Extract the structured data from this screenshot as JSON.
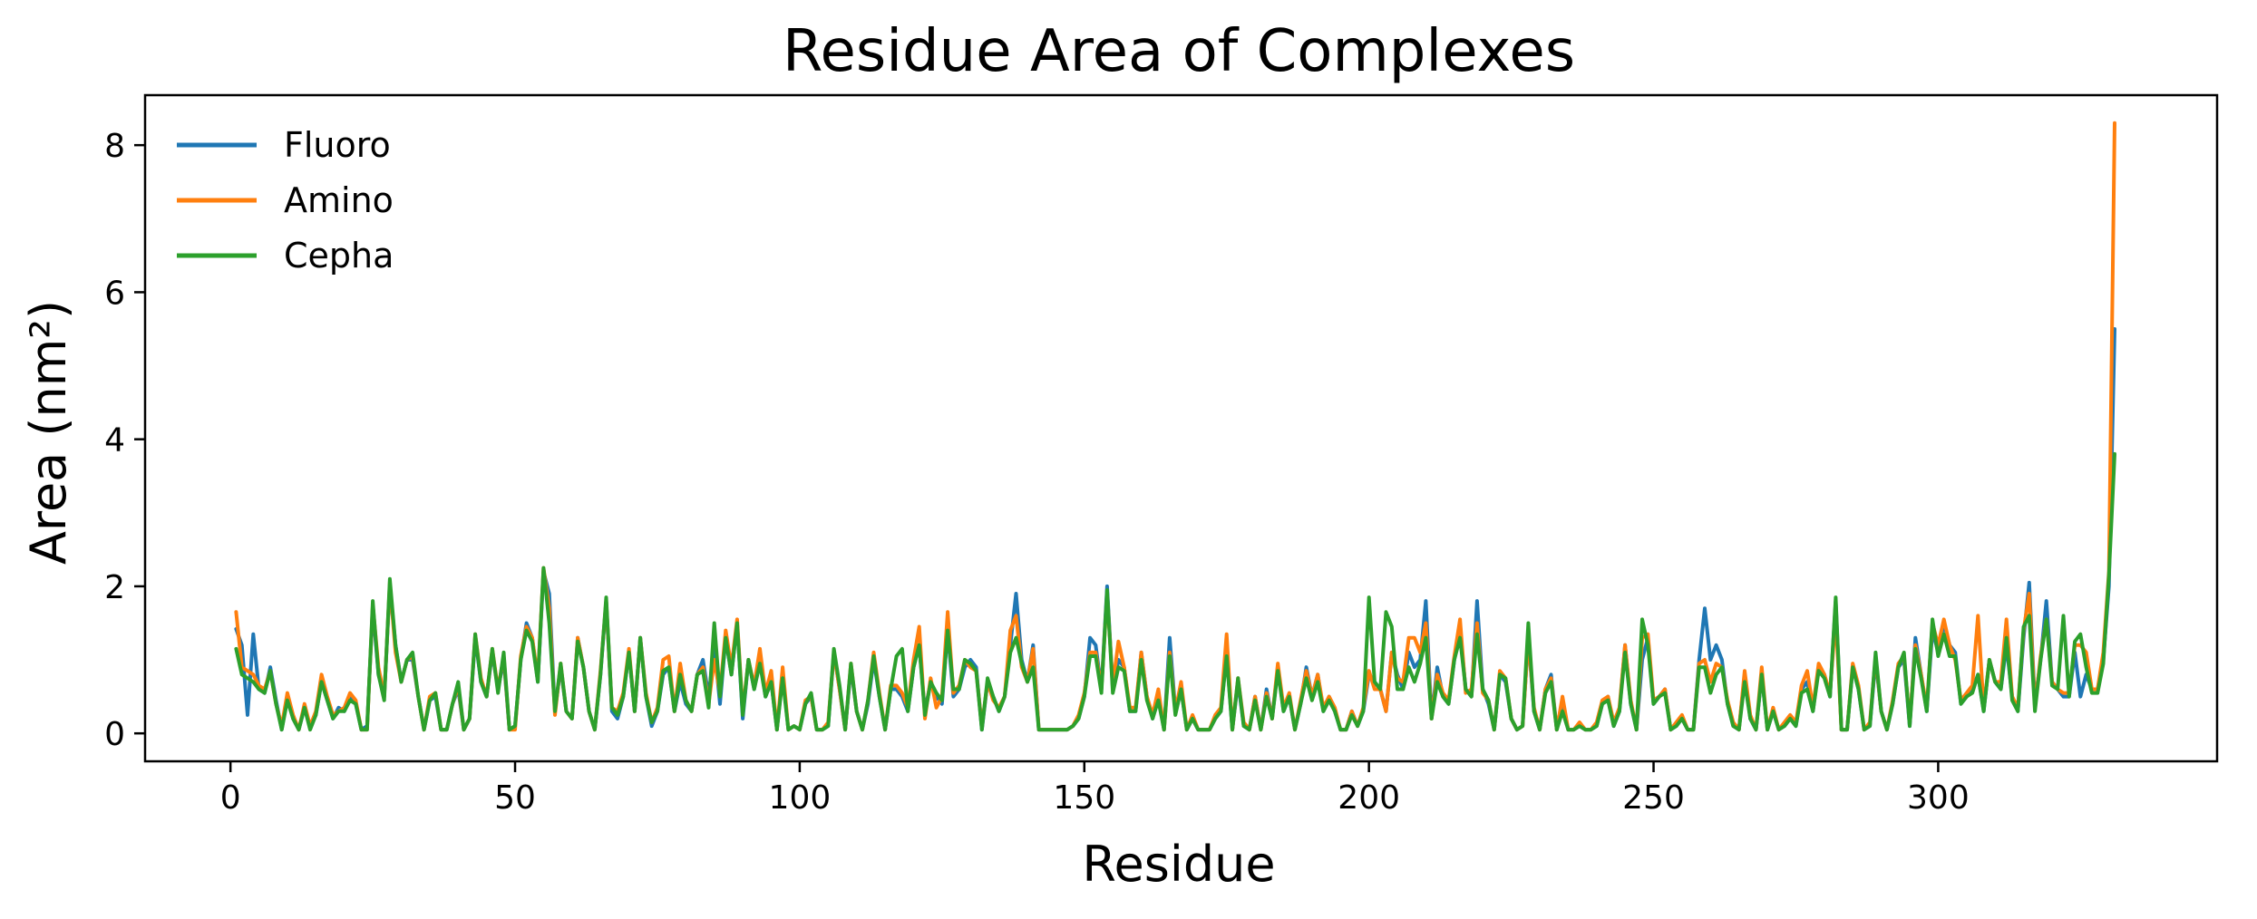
{
  "chart_data": {
    "type": "line",
    "title": "Residue Area of Complexes",
    "xlabel": "Residue",
    "ylabel": "Area (nm²)",
    "xlim": [
      -15,
      349
    ],
    "ylim": [
      -0.38,
      8.68
    ],
    "xticks": [
      0,
      50,
      100,
      150,
      200,
      250,
      300
    ],
    "yticks": [
      0,
      2,
      4,
      6,
      8
    ],
    "grid": false,
    "legend": "top-left",
    "x_start": 1,
    "series": [
      {
        "name": "Fluoro",
        "color": "#1f77b4",
        "values": [
          1.42,
          1.2,
          0.25,
          1.35,
          0.6,
          0.55,
          0.9,
          0.45,
          0.05,
          0.5,
          0.2,
          0.05,
          0.35,
          0.1,
          0.25,
          0.7,
          0.45,
          0.2,
          0.35,
          0.3,
          0.5,
          0.4,
          0.05,
          0.1,
          1.7,
          0.8,
          0.5,
          2.0,
          1.2,
          0.7,
          1.0,
          1.0,
          0.5,
          0.05,
          0.45,
          0.5,
          0.05,
          0.05,
          0.4,
          0.6,
          0.05,
          0.2,
          1.3,
          0.7,
          0.5,
          1.1,
          0.6,
          1.0,
          0.05,
          0.1,
          1.0,
          1.5,
          1.3,
          0.7,
          2.2,
          1.9,
          0.3,
          0.9,
          0.3,
          0.2,
          1.3,
          0.9,
          0.3,
          0.05,
          0.8,
          1.8,
          0.3,
          0.2,
          0.5,
          1.1,
          0.3,
          1.3,
          0.5,
          0.1,
          0.3,
          0.8,
          0.9,
          0.3,
          0.7,
          0.4,
          0.3,
          0.8,
          1.0,
          0.5,
          1.2,
          0.4,
          1.3,
          0.8,
          1.5,
          0.2,
          1.0,
          0.6,
          1.0,
          0.5,
          0.7,
          0.05,
          0.8,
          0.05,
          0.1,
          0.05,
          0.4,
          0.5,
          0.05,
          0.05,
          0.1,
          1.1,
          0.6,
          0.05,
          0.9,
          0.3,
          0.05,
          0.4,
          1.0,
          0.5,
          0.05,
          0.6,
          0.6,
          0.5,
          0.3,
          0.9,
          1.2,
          0.3,
          0.7,
          0.5,
          0.4,
          1.4,
          0.5,
          0.6,
          0.9,
          1.0,
          0.9,
          0.05,
          0.7,
          0.5,
          0.3,
          0.5,
          1.2,
          1.9,
          1.0,
          0.7,
          1.2,
          0.05,
          0.05,
          0.05,
          0.05,
          0.05,
          0.05,
          0.1,
          0.2,
          0.5,
          1.3,
          1.2,
          0.6,
          2.0,
          0.6,
          1.0,
          0.9,
          0.3,
          0.3,
          1.1,
          0.5,
          0.2,
          0.5,
          0.05,
          1.3,
          0.3,
          0.6,
          0.05,
          0.2,
          0.05,
          0.05,
          0.05,
          0.2,
          0.3,
          1.1,
          0.05,
          0.7,
          0.1,
          0.05,
          0.5,
          0.05,
          0.6,
          0.2,
          0.9,
          0.3,
          0.5,
          0.05,
          0.4,
          0.9,
          0.5,
          0.8,
          0.3,
          0.5,
          0.3,
          0.05,
          0.05,
          0.3,
          0.1,
          0.3,
          0.8,
          0.7,
          0.6,
          0.3,
          1.1,
          0.8,
          0.6,
          1.1,
          0.9,
          1.0,
          1.8,
          0.2,
          0.9,
          0.5,
          0.4,
          1.0,
          1.4,
          0.6,
          0.5,
          1.8,
          0.6,
          0.4,
          0.05,
          0.8,
          0.7,
          0.2,
          0.05,
          0.1,
          1.3,
          0.3,
          0.05,
          0.6,
          0.8,
          0.05,
          0.4,
          0.05,
          0.05,
          0.1,
          0.05,
          0.05,
          0.1,
          0.4,
          0.5,
          0.1,
          0.3,
          1.2,
          0.4,
          0.05,
          1.0,
          1.3,
          0.4,
          0.5,
          0.6,
          0.05,
          0.1,
          0.2,
          0.05,
          0.05,
          1.0,
          1.7,
          1.0,
          1.2,
          1.0,
          0.4,
          0.1,
          0.05,
          0.8,
          0.2,
          0.05,
          0.8,
          0.05,
          0.3,
          0.05,
          0.1,
          0.2,
          0.1,
          0.6,
          0.7,
          0.3,
          0.9,
          0.8,
          0.5,
          1.8,
          0.05,
          0.05,
          0.9,
          0.6,
          0.05,
          0.1,
          1.0,
          0.3,
          0.05,
          0.4,
          0.9,
          1.0,
          0.1,
          1.3,
          0.8,
          0.3,
          1.4,
          1.1,
          1.5,
          1.2,
          1.1,
          0.4,
          0.5,
          0.6,
          0.8,
          0.3,
          1.0,
          0.7,
          0.6,
          1.2,
          0.5,
          0.3,
          1.3,
          2.05,
          0.4,
          1.0,
          1.8,
          0.7,
          0.6,
          0.5,
          0.5,
          1.1,
          0.5,
          0.8,
          0.6,
          0.6,
          1.0,
          2.0,
          5.5
        ]
      },
      {
        "name": "Amino",
        "color": "#ff7f0e",
        "values": [
          1.65,
          0.9,
          0.85,
          0.8,
          0.65,
          0.6,
          0.85,
          0.4,
          0.1,
          0.55,
          0.25,
          0.05,
          0.4,
          0.1,
          0.3,
          0.8,
          0.5,
          0.25,
          0.3,
          0.35,
          0.55,
          0.45,
          0.05,
          0.05,
          1.75,
          0.9,
          0.5,
          2.05,
          1.1,
          0.7,
          1.0,
          1.05,
          0.5,
          0.05,
          0.5,
          0.55,
          0.05,
          0.05,
          0.4,
          0.65,
          0.05,
          0.2,
          1.35,
          0.75,
          0.5,
          1.15,
          0.6,
          1.05,
          0.05,
          0.05,
          1.05,
          1.45,
          1.3,
          0.75,
          2.25,
          1.7,
          0.25,
          0.95,
          0.3,
          0.2,
          1.3,
          0.9,
          0.3,
          0.05,
          0.85,
          1.8,
          0.35,
          0.3,
          0.55,
          1.15,
          0.3,
          1.3,
          0.55,
          0.15,
          0.35,
          1.0,
          1.05,
          0.3,
          0.95,
          0.45,
          0.3,
          0.8,
          0.9,
          0.4,
          1.0,
          0.55,
          1.4,
          0.9,
          1.55,
          0.3,
          1.0,
          0.65,
          1.15,
          0.55,
          0.85,
          0.05,
          0.9,
          0.05,
          0.1,
          0.05,
          0.45,
          0.5,
          0.05,
          0.05,
          0.15,
          1.1,
          0.6,
          0.05,
          0.95,
          0.3,
          0.05,
          0.45,
          1.1,
          0.55,
          0.05,
          0.65,
          0.65,
          0.55,
          0.35,
          1.0,
          1.45,
          0.2,
          0.75,
          0.35,
          0.5,
          1.65,
          0.55,
          0.65,
          1.0,
          0.9,
          0.85,
          0.1,
          0.7,
          0.45,
          0.35,
          0.5,
          1.4,
          1.6,
          0.9,
          0.7,
          1.15,
          0.05,
          0.05,
          0.05,
          0.05,
          0.05,
          0.05,
          0.1,
          0.25,
          0.55,
          1.1,
          1.1,
          0.6,
          1.9,
          0.65,
          1.25,
          0.9,
          0.35,
          0.35,
          1.1,
          0.5,
          0.25,
          0.6,
          0.05,
          1.1,
          0.3,
          0.7,
          0.05,
          0.25,
          0.05,
          0.05,
          0.05,
          0.25,
          0.35,
          1.35,
          0.05,
          0.75,
          0.15,
          0.05,
          0.5,
          0.05,
          0.55,
          0.2,
          0.95,
          0.35,
          0.55,
          0.05,
          0.45,
          0.85,
          0.5,
          0.8,
          0.35,
          0.5,
          0.35,
          0.05,
          0.05,
          0.3,
          0.1,
          0.35,
          0.85,
          0.6,
          0.6,
          0.3,
          1.1,
          0.75,
          0.7,
          1.3,
          1.3,
          1.1,
          1.5,
          0.2,
          0.8,
          0.55,
          0.45,
          1.05,
          1.55,
          0.55,
          0.6,
          1.5,
          0.55,
          0.45,
          0.05,
          0.85,
          0.75,
          0.2,
          0.05,
          0.1,
          1.3,
          0.35,
          0.05,
          0.6,
          0.75,
          0.05,
          0.5,
          0.05,
          0.05,
          0.15,
          0.05,
          0.05,
          0.15,
          0.45,
          0.5,
          0.15,
          0.35,
          1.2,
          0.45,
          0.05,
          1.3,
          1.35,
          0.45,
          0.5,
          0.6,
          0.05,
          0.15,
          0.25,
          0.05,
          0.05,
          0.95,
          1.0,
          0.7,
          0.95,
          0.9,
          0.45,
          0.15,
          0.05,
          0.85,
          0.25,
          0.05,
          0.9,
          0.05,
          0.35,
          0.05,
          0.15,
          0.25,
          0.15,
          0.65,
          0.85,
          0.35,
          0.95,
          0.8,
          0.55,
          1.6,
          0.05,
          0.05,
          0.95,
          0.65,
          0.05,
          0.15,
          1.05,
          0.3,
          0.05,
          0.45,
          0.95,
          1.05,
          0.15,
          1.2,
          0.8,
          0.35,
          1.5,
          1.2,
          1.55,
          1.2,
          1.0,
          0.45,
          0.55,
          0.65,
          1.6,
          0.35,
          1.0,
          0.7,
          0.7,
          1.55,
          0.5,
          0.35,
          1.4,
          1.9,
          0.35,
          1.05,
          1.55,
          0.7,
          0.6,
          0.55,
          0.55,
          1.2,
          1.2,
          1.1,
          0.6,
          0.6,
          1.1,
          2.2,
          8.3
        ]
      },
      {
        "name": "Cepha",
        "color": "#2ca02c",
        "values": [
          1.15,
          0.8,
          0.75,
          0.7,
          0.6,
          0.55,
          0.85,
          0.4,
          0.05,
          0.45,
          0.2,
          0.05,
          0.35,
          0.05,
          0.25,
          0.7,
          0.45,
          0.2,
          0.3,
          0.3,
          0.45,
          0.4,
          0.05,
          0.05,
          1.8,
          0.8,
          0.45,
          2.1,
          1.2,
          0.7,
          1.0,
          1.1,
          0.5,
          0.05,
          0.45,
          0.55,
          0.05,
          0.05,
          0.4,
          0.7,
          0.05,
          0.2,
          1.35,
          0.7,
          0.5,
          1.15,
          0.55,
          1.1,
          0.05,
          0.1,
          1.0,
          1.4,
          1.25,
          0.7,
          2.25,
          1.5,
          0.3,
          0.95,
          0.3,
          0.2,
          1.25,
          0.9,
          0.3,
          0.05,
          0.8,
          1.85,
          0.35,
          0.25,
          0.5,
          1.1,
          0.3,
          1.3,
          0.5,
          0.15,
          0.3,
          0.85,
          0.9,
          0.3,
          0.8,
          0.45,
          0.3,
          0.8,
          0.85,
          0.35,
          1.5,
          0.5,
          1.3,
          0.8,
          1.5,
          0.25,
          1.0,
          0.6,
          0.95,
          0.5,
          0.7,
          0.05,
          0.75,
          0.05,
          0.1,
          0.05,
          0.4,
          0.55,
          0.05,
          0.05,
          0.1,
          1.15,
          0.65,
          0.05,
          0.95,
          0.3,
          0.05,
          0.45,
          1.05,
          0.5,
          0.05,
          0.6,
          1.05,
          1.15,
          0.3,
          0.9,
          1.2,
          0.25,
          0.7,
          0.55,
          0.45,
          1.4,
          0.6,
          0.6,
          1.0,
          0.95,
          0.85,
          0.05,
          0.75,
          0.5,
          0.3,
          0.5,
          1.1,
          1.3,
          0.95,
          0.7,
          0.9,
          0.05,
          0.05,
          0.05,
          0.05,
          0.05,
          0.05,
          0.1,
          0.2,
          0.5,
          1.05,
          1.05,
          0.55,
          1.95,
          0.55,
          0.9,
          0.85,
          0.3,
          0.3,
          1.0,
          0.45,
          0.2,
          0.45,
          0.05,
          1.05,
          0.25,
          0.6,
          0.05,
          0.2,
          0.05,
          0.05,
          0.05,
          0.2,
          0.3,
          1.05,
          0.05,
          0.75,
          0.1,
          0.05,
          0.45,
          0.05,
          0.5,
          0.2,
          0.85,
          0.3,
          0.5,
          0.05,
          0.4,
          0.75,
          0.45,
          0.7,
          0.3,
          0.45,
          0.3,
          0.05,
          0.05,
          0.25,
          0.1,
          0.3,
          1.85,
          0.7,
          0.6,
          1.65,
          1.45,
          0.6,
          0.6,
          0.9,
          0.7,
          0.95,
          1.3,
          0.2,
          0.7,
          0.5,
          0.4,
          1.0,
          1.3,
          0.6,
          0.5,
          1.35,
          0.6,
          0.45,
          0.05,
          0.8,
          0.75,
          0.2,
          0.05,
          0.1,
          1.5,
          0.3,
          0.05,
          0.55,
          0.7,
          0.05,
          0.3,
          0.05,
          0.05,
          0.1,
          0.05,
          0.05,
          0.1,
          0.4,
          0.45,
          0.1,
          0.3,
          1.1,
          0.4,
          0.05,
          1.55,
          1.2,
          0.4,
          0.5,
          0.55,
          0.05,
          0.1,
          0.2,
          0.05,
          0.05,
          0.9,
          0.9,
          0.55,
          0.8,
          0.9,
          0.4,
          0.1,
          0.05,
          0.7,
          0.2,
          0.05,
          0.8,
          0.05,
          0.3,
          0.05,
          0.1,
          0.2,
          0.1,
          0.55,
          0.6,
          0.3,
          0.85,
          0.75,
          0.5,
          1.85,
          0.05,
          0.05,
          0.9,
          0.6,
          0.05,
          0.1,
          1.1,
          0.3,
          0.05,
          0.4,
          0.9,
          1.1,
          0.1,
          1.15,
          0.75,
          0.3,
          1.55,
          1.05,
          1.35,
          1.05,
          1.05,
          0.4,
          0.5,
          0.55,
          0.8,
          0.3,
          1.0,
          0.7,
          0.6,
          1.3,
          0.45,
          0.3,
          1.45,
          1.6,
          0.3,
          1.0,
          1.55,
          0.65,
          0.6,
          1.6,
          0.5,
          1.25,
          1.35,
          0.9,
          0.55,
          0.55,
          0.95,
          2.15,
          3.8
        ]
      }
    ]
  }
}
